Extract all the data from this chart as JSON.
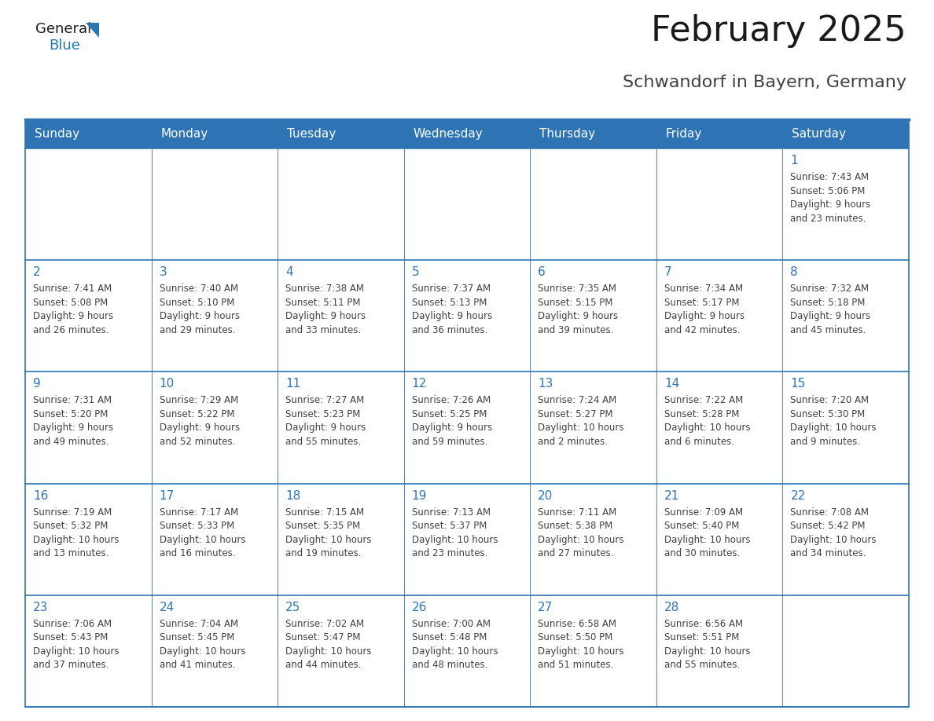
{
  "title": "February 2025",
  "subtitle": "Schwandorf in Bayern, Germany",
  "header_bg": "#2E74B5",
  "header_text_color": "#FFFFFF",
  "separator_color": "#2E74B5",
  "day_number_color": "#2E74B5",
  "cell_text_color": "#404040",
  "title_color": "#1A1A1A",
  "subtitle_color": "#404040",
  "days_of_week": [
    "Sunday",
    "Monday",
    "Tuesday",
    "Wednesday",
    "Thursday",
    "Friday",
    "Saturday"
  ],
  "calendar_data": [
    [
      {
        "day": null,
        "info": null
      },
      {
        "day": null,
        "info": null
      },
      {
        "day": null,
        "info": null
      },
      {
        "day": null,
        "info": null
      },
      {
        "day": null,
        "info": null
      },
      {
        "day": null,
        "info": null
      },
      {
        "day": 1,
        "info": "Sunrise: 7:43 AM\nSunset: 5:06 PM\nDaylight: 9 hours\nand 23 minutes."
      }
    ],
    [
      {
        "day": 2,
        "info": "Sunrise: 7:41 AM\nSunset: 5:08 PM\nDaylight: 9 hours\nand 26 minutes."
      },
      {
        "day": 3,
        "info": "Sunrise: 7:40 AM\nSunset: 5:10 PM\nDaylight: 9 hours\nand 29 minutes."
      },
      {
        "day": 4,
        "info": "Sunrise: 7:38 AM\nSunset: 5:11 PM\nDaylight: 9 hours\nand 33 minutes."
      },
      {
        "day": 5,
        "info": "Sunrise: 7:37 AM\nSunset: 5:13 PM\nDaylight: 9 hours\nand 36 minutes."
      },
      {
        "day": 6,
        "info": "Sunrise: 7:35 AM\nSunset: 5:15 PM\nDaylight: 9 hours\nand 39 minutes."
      },
      {
        "day": 7,
        "info": "Sunrise: 7:34 AM\nSunset: 5:17 PM\nDaylight: 9 hours\nand 42 minutes."
      },
      {
        "day": 8,
        "info": "Sunrise: 7:32 AM\nSunset: 5:18 PM\nDaylight: 9 hours\nand 45 minutes."
      }
    ],
    [
      {
        "day": 9,
        "info": "Sunrise: 7:31 AM\nSunset: 5:20 PM\nDaylight: 9 hours\nand 49 minutes."
      },
      {
        "day": 10,
        "info": "Sunrise: 7:29 AM\nSunset: 5:22 PM\nDaylight: 9 hours\nand 52 minutes."
      },
      {
        "day": 11,
        "info": "Sunrise: 7:27 AM\nSunset: 5:23 PM\nDaylight: 9 hours\nand 55 minutes."
      },
      {
        "day": 12,
        "info": "Sunrise: 7:26 AM\nSunset: 5:25 PM\nDaylight: 9 hours\nand 59 minutes."
      },
      {
        "day": 13,
        "info": "Sunrise: 7:24 AM\nSunset: 5:27 PM\nDaylight: 10 hours\nand 2 minutes."
      },
      {
        "day": 14,
        "info": "Sunrise: 7:22 AM\nSunset: 5:28 PM\nDaylight: 10 hours\nand 6 minutes."
      },
      {
        "day": 15,
        "info": "Sunrise: 7:20 AM\nSunset: 5:30 PM\nDaylight: 10 hours\nand 9 minutes."
      }
    ],
    [
      {
        "day": 16,
        "info": "Sunrise: 7:19 AM\nSunset: 5:32 PM\nDaylight: 10 hours\nand 13 minutes."
      },
      {
        "day": 17,
        "info": "Sunrise: 7:17 AM\nSunset: 5:33 PM\nDaylight: 10 hours\nand 16 minutes."
      },
      {
        "day": 18,
        "info": "Sunrise: 7:15 AM\nSunset: 5:35 PM\nDaylight: 10 hours\nand 19 minutes."
      },
      {
        "day": 19,
        "info": "Sunrise: 7:13 AM\nSunset: 5:37 PM\nDaylight: 10 hours\nand 23 minutes."
      },
      {
        "day": 20,
        "info": "Sunrise: 7:11 AM\nSunset: 5:38 PM\nDaylight: 10 hours\nand 27 minutes."
      },
      {
        "day": 21,
        "info": "Sunrise: 7:09 AM\nSunset: 5:40 PM\nDaylight: 10 hours\nand 30 minutes."
      },
      {
        "day": 22,
        "info": "Sunrise: 7:08 AM\nSunset: 5:42 PM\nDaylight: 10 hours\nand 34 minutes."
      }
    ],
    [
      {
        "day": 23,
        "info": "Sunrise: 7:06 AM\nSunset: 5:43 PM\nDaylight: 10 hours\nand 37 minutes."
      },
      {
        "day": 24,
        "info": "Sunrise: 7:04 AM\nSunset: 5:45 PM\nDaylight: 10 hours\nand 41 minutes."
      },
      {
        "day": 25,
        "info": "Sunrise: 7:02 AM\nSunset: 5:47 PM\nDaylight: 10 hours\nand 44 minutes."
      },
      {
        "day": 26,
        "info": "Sunrise: 7:00 AM\nSunset: 5:48 PM\nDaylight: 10 hours\nand 48 minutes."
      },
      {
        "day": 27,
        "info": "Sunrise: 6:58 AM\nSunset: 5:50 PM\nDaylight: 10 hours\nand 51 minutes."
      },
      {
        "day": 28,
        "info": "Sunrise: 6:56 AM\nSunset: 5:51 PM\nDaylight: 10 hours\nand 55 minutes."
      },
      {
        "day": null,
        "info": null
      }
    ]
  ],
  "logo_general_color": "#1A1A1A",
  "logo_blue_color": "#2778B5",
  "title_fontsize": 32,
  "subtitle_fontsize": 16,
  "header_fontsize": 11,
  "day_number_fontsize": 11,
  "cell_text_fontsize": 8.5
}
